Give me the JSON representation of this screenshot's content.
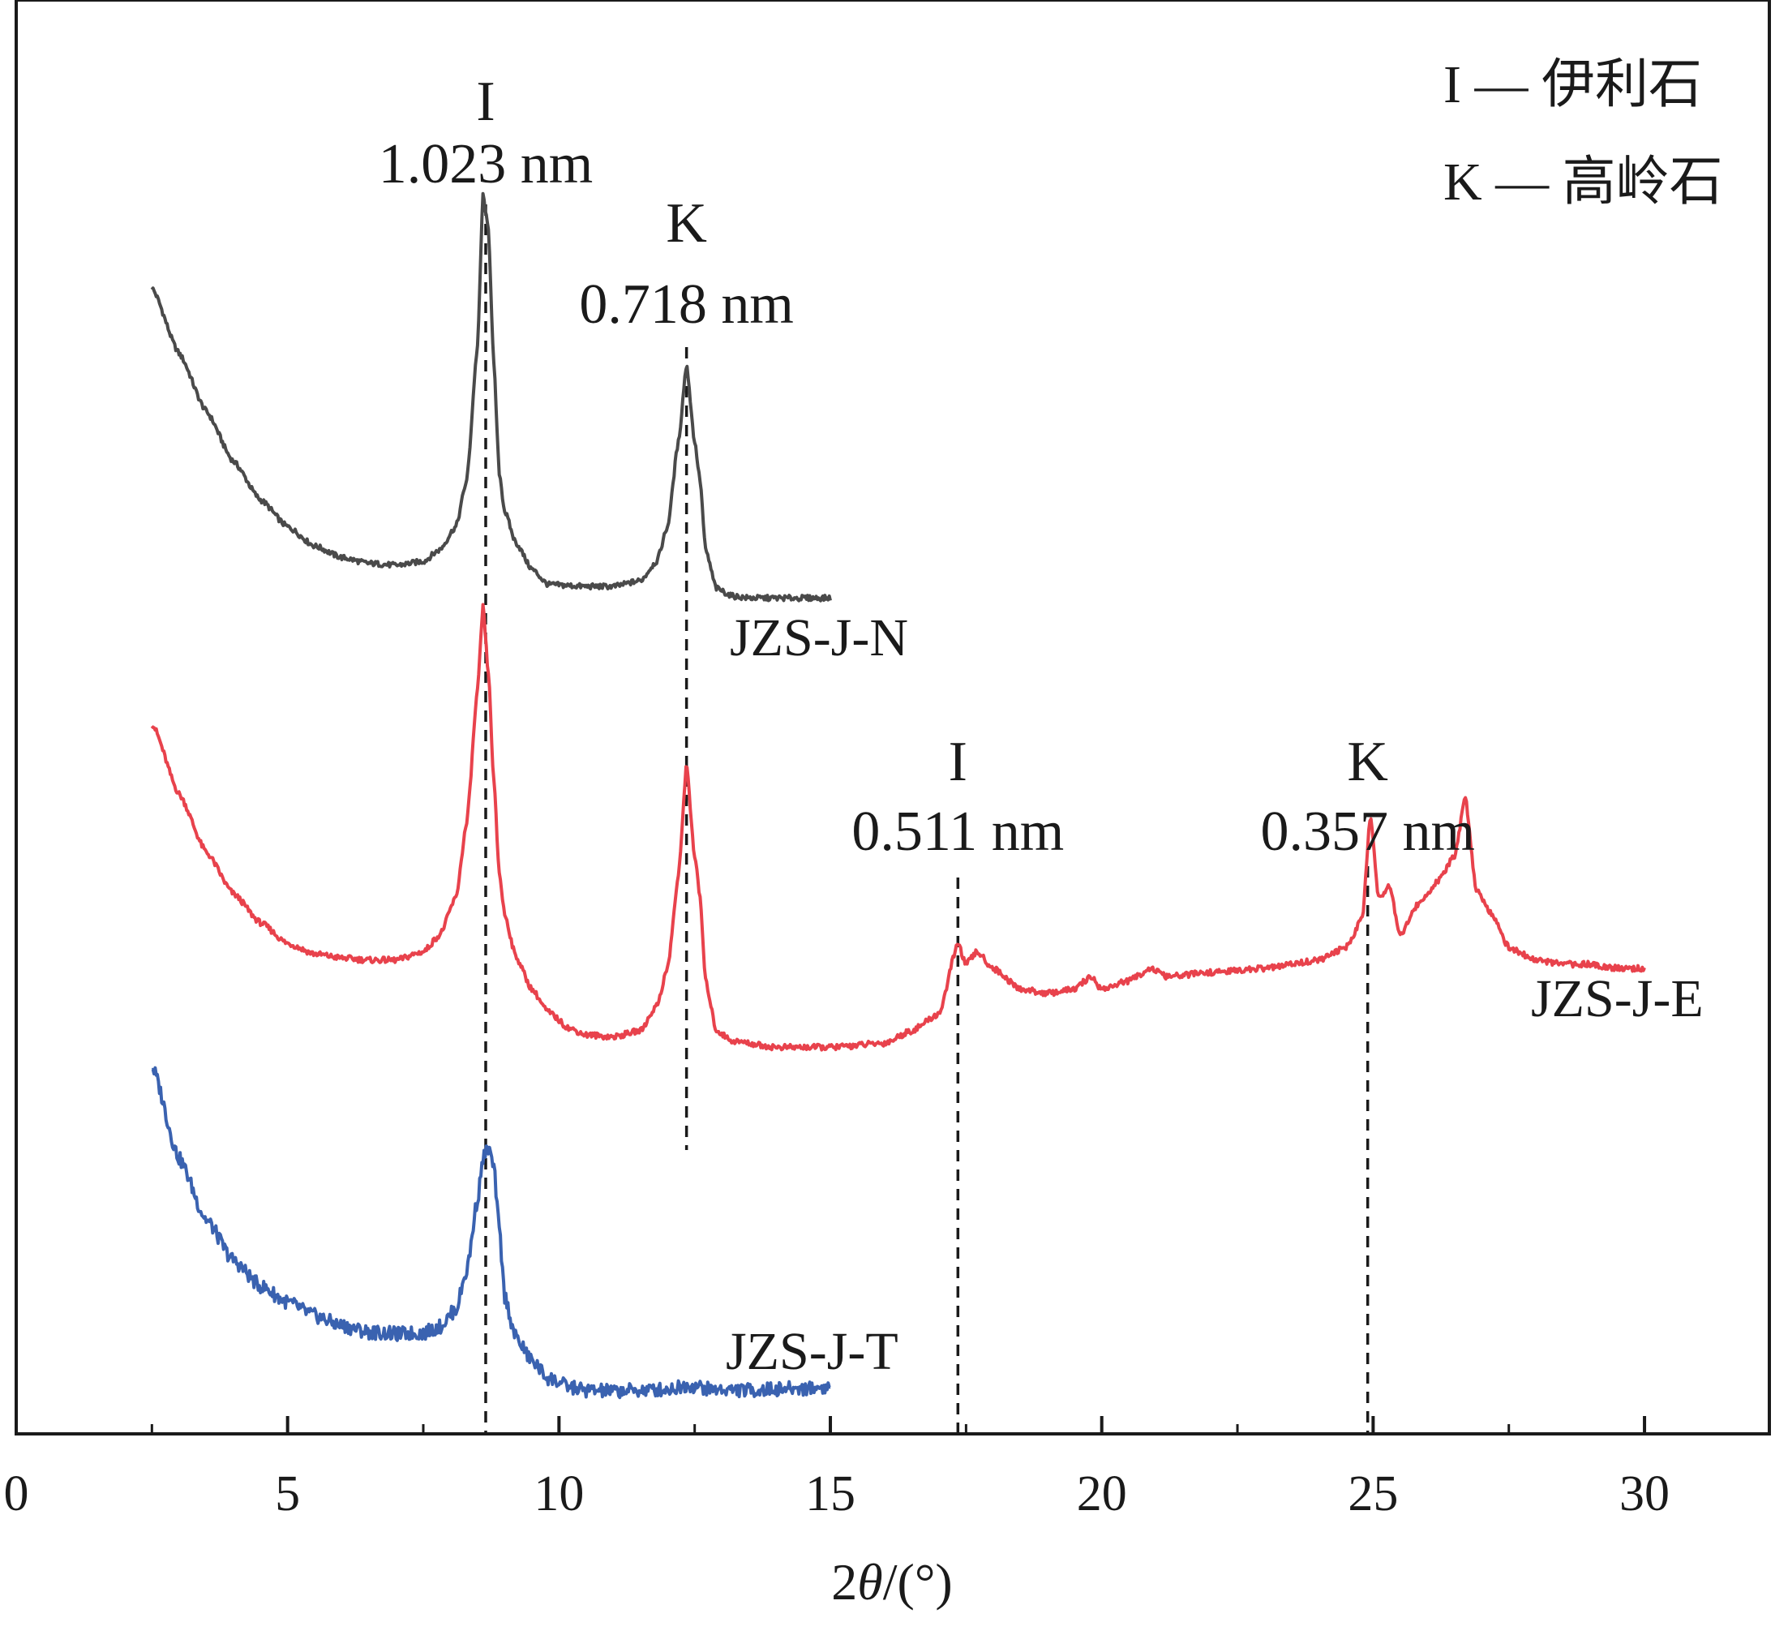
{
  "chart_data": {
    "type": "line",
    "xlabel": "2θ/(°)",
    "xlim": [
      0,
      32.3
    ],
    "x_ticks": [
      0,
      5,
      10,
      15,
      20,
      25,
      30
    ],
    "x_minor_ticks": [
      2.5,
      7.5,
      12.5,
      17.5,
      22.5,
      27.5
    ],
    "y_ticks_shown": false,
    "grid": false,
    "legend": [
      {
        "text": "I — 伊利石"
      },
      {
        "text": "K — 高岭石"
      }
    ],
    "annotations": [
      {
        "mineral": "I",
        "d_spacing": "1.023 nm",
        "x": 8.65,
        "series": "JZS-J-N"
      },
      {
        "mineral": "K",
        "d_spacing": "0.718 nm",
        "x": 12.35,
        "series": "JZS-J-N"
      },
      {
        "mineral": "I",
        "d_spacing": "0.511 nm",
        "x": 17.35,
        "series": "JZS-J-E"
      },
      {
        "mineral": "K",
        "d_spacing": "0.357 nm",
        "x": 24.9,
        "series": "JZS-J-E"
      }
    ],
    "series": [
      {
        "name": "JZS-J-N",
        "color": "#4a4a4a",
        "x": [
          2.5,
          3.0,
          3.5,
          4.0,
          4.5,
          5.0,
          5.5,
          6.0,
          6.5,
          7.0,
          7.5,
          7.8,
          8.1,
          8.3,
          8.5,
          8.6,
          8.7,
          8.8,
          8.9,
          9.0,
          9.2,
          9.5,
          9.8,
          10.5,
          11.0,
          11.5,
          11.8,
          12.0,
          12.2,
          12.35,
          12.5,
          12.6,
          12.7,
          12.9,
          13.2,
          13.5,
          14.0,
          14.5,
          15.0
        ],
        "y": [
          100,
          83,
          68,
          55,
          45,
          38,
          33,
          30,
          28.5,
          28,
          29,
          32,
          38,
          50,
          85,
          124,
          115,
          80,
          52,
          42,
          34,
          27,
          23,
          22.5,
          22.5,
          24,
          29,
          38,
          60,
          80,
          60,
          50,
          32,
          22,
          20,
          19.5,
          19.5,
          19.5,
          19.5
        ]
      },
      {
        "name": "JZS-J-E",
        "color": "#e8424c",
        "x": [
          2.5,
          3.0,
          3.5,
          4.0,
          4.5,
          5.0,
          5.5,
          6.0,
          6.5,
          7.0,
          7.5,
          7.8,
          8.1,
          8.3,
          8.5,
          8.6,
          8.7,
          8.8,
          8.9,
          9.0,
          9.2,
          9.5,
          9.8,
          10.2,
          10.5,
          11.0,
          11.5,
          11.8,
          12.0,
          12.2,
          12.35,
          12.5,
          12.6,
          12.7,
          12.9,
          13.2,
          14.0,
          15.0,
          16.0,
          16.5,
          17.0,
          17.35,
          17.5,
          17.7,
          18.0,
          18.5,
          19.0,
          19.5,
          19.8,
          20.0,
          20.5,
          20.9,
          21.2,
          22.0,
          23.0,
          24.0,
          24.5,
          24.8,
          24.95,
          25.1,
          25.3,
          25.5,
          25.8,
          26.2,
          26.5,
          26.7,
          26.9,
          27.2,
          27.5,
          28.0,
          28.5,
          29.0,
          29.5,
          30.0
        ],
        "y": [
          92,
          75,
          61,
          51,
          44,
          39,
          36.5,
          35.5,
          35,
          35,
          37,
          41,
          50,
          68,
          100,
          120,
          104,
          78,
          56,
          46,
          36,
          28,
          22.5,
          18.5,
          17,
          16.5,
          18,
          24,
          33,
          55,
          82,
          60,
          50,
          30,
          18,
          15.5,
          14,
          14,
          15,
          18,
          22,
          39,
          34,
          37,
          33,
          28,
          27,
          28,
          31,
          28,
          30,
          33,
          31,
          32,
          33,
          35,
          38,
          45,
          70,
          50,
          53,
          41,
          48,
          54,
          60,
          74,
          52,
          46,
          38,
          35,
          34,
          34,
          33,
          33
        ]
      },
      {
        "name": "JZS-J-T",
        "color": "#3a62b0",
        "x": [
          2.5,
          3.0,
          3.5,
          4.0,
          4.5,
          5.0,
          5.5,
          6.0,
          6.5,
          7.0,
          7.5,
          7.8,
          8.1,
          8.3,
          8.5,
          8.6,
          8.7,
          8.8,
          8.9,
          9.0,
          9.2,
          9.5,
          9.8,
          10.2,
          10.5,
          11.0,
          11.5,
          12.0,
          12.4,
          12.8,
          13.5,
          14.0,
          14.5,
          15.0
        ],
        "y": [
          32,
          23,
          17,
          13,
          10.5,
          8.9,
          7.6,
          6.6,
          6.0,
          5.8,
          5.9,
          6.5,
          8.2,
          12,
          19,
          23,
          24,
          22,
          16,
          9.5,
          5.5,
          3.2,
          1.5,
          0.6,
          0.3,
          0.2,
          0.3,
          0.4,
          0.8,
          0.4,
          0.3,
          0.4,
          0.5,
          0.6
        ]
      }
    ],
    "series_label_text": {
      "JZS-J-N": "JZS-J-N",
      "JZS-J-E": "JZS-J-E",
      "JZS-J-T": "JZS-J-T"
    }
  }
}
